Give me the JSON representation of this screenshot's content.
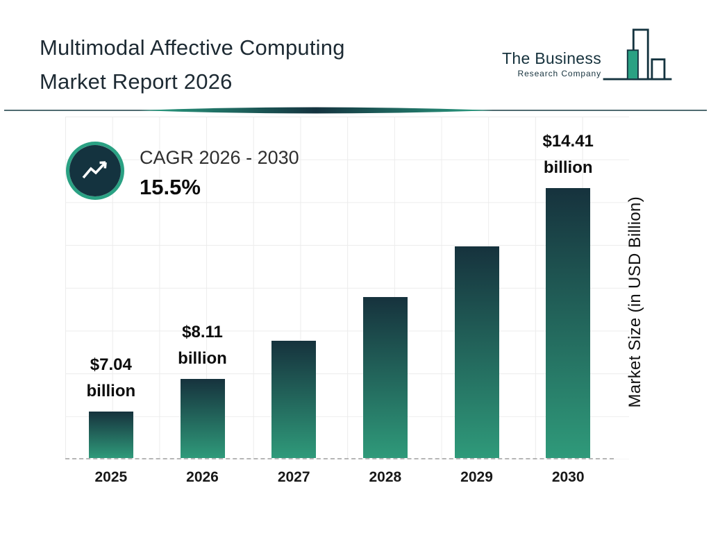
{
  "header": {
    "title_line1": "Multimodal Affective Computing",
    "title_line2": "Market Report 2026",
    "logo": {
      "line1": "The Business",
      "line2": "Research Company"
    }
  },
  "cagr": {
    "label": "CAGR 2026 - 2030",
    "value": "15.5%"
  },
  "chart_data": {
    "type": "bar",
    "title": "Multimodal Affective Computing Market Report 2026",
    "categories": [
      "2025",
      "2026",
      "2027",
      "2028",
      "2029",
      "2030"
    ],
    "values": [
      7.04,
      8.11,
      9.37,
      10.82,
      12.49,
      14.41
    ],
    "unlabeled_values_estimated": true,
    "bar_labels": [
      "$7.04 billion",
      "$8.11 billion",
      "",
      "",
      "",
      "$14.41 billion"
    ],
    "xlabel": "",
    "ylabel": "Market Size (in USD Billion)",
    "ylim": [
      5.5,
      15
    ],
    "grid": true,
    "legend": false
  },
  "colors": {
    "navy": "#14333f",
    "teal": "#2aa183",
    "bar_top": "#16323d",
    "bar_bottom": "#2f9a7a",
    "grid_line": "#ececec",
    "dashed_axis": "#b5b5b5"
  }
}
